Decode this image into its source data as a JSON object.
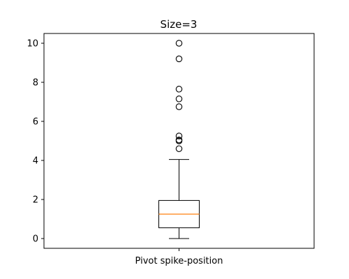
{
  "chart_data": {
    "type": "box",
    "title": "Size=3",
    "xlabel": "",
    "ylabel": "",
    "categories": [
      "Pivot spike-position"
    ],
    "ylim": [
      -0.5,
      10.5
    ],
    "yticks": [
      0,
      2,
      4,
      6,
      8,
      10
    ],
    "grid": false,
    "boxes": [
      {
        "category": "Pivot spike-position",
        "whisker_low": 0.0,
        "q1": 0.55,
        "median": 1.25,
        "q3": 1.95,
        "whisker_high": 4.05,
        "outliers": [
          4.6,
          5.0,
          5.05,
          5.25,
          6.75,
          7.15,
          7.65,
          9.2,
          10.0
        ]
      }
    ],
    "colors": {
      "box": "#000000",
      "median": "#ff7f0e",
      "outlier_edge": "#000000"
    }
  }
}
